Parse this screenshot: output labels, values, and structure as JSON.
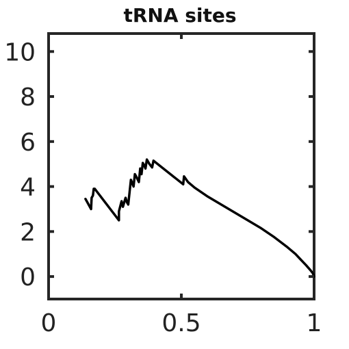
{
  "chart_data": {
    "type": "line",
    "title": "tRNA sites",
    "xlabel": "",
    "ylabel": "",
    "xlim": [
      0,
      1
    ],
    "ylim": [
      -1,
      10.8
    ],
    "xticks": [
      0,
      0.5,
      1
    ],
    "xtick_labels": [
      "0",
      "0.5",
      "1"
    ],
    "yticks": [
      0,
      2,
      4,
      6,
      8,
      10
    ],
    "ytick_labels": [
      "0",
      "2",
      "4",
      "6",
      "8",
      "10"
    ],
    "grid": false,
    "legend": "none",
    "series": [
      {
        "color": "#000000",
        "x": [
          0.139,
          0.16,
          0.162,
          0.167,
          0.17,
          0.174,
          0.265,
          0.265,
          0.275,
          0.28,
          0.29,
          0.295,
          0.3,
          0.31,
          0.32,
          0.325,
          0.33,
          0.34,
          0.345,
          0.35,
          0.355,
          0.36,
          0.365,
          0.37,
          0.38,
          0.39,
          0.395,
          0.4,
          0.507,
          0.51,
          0.525,
          0.55,
          0.6,
          0.65,
          0.7,
          0.75,
          0.8,
          0.85,
          0.9,
          0.93,
          0.95,
          0.97,
          0.985,
          0.995,
          1.0
        ],
        "y": [
          3.45,
          3.0,
          3.5,
          3.6,
          3.9,
          3.9,
          2.5,
          2.9,
          3.35,
          3.1,
          3.5,
          3.3,
          3.2,
          4.3,
          4.0,
          4.55,
          4.45,
          4.2,
          4.8,
          4.55,
          5.05,
          4.95,
          4.8,
          5.2,
          5.0,
          4.85,
          5.15,
          5.1,
          4.1,
          4.45,
          4.2,
          3.95,
          3.55,
          3.2,
          2.85,
          2.5,
          2.15,
          1.75,
          1.3,
          1.0,
          0.75,
          0.5,
          0.3,
          0.15,
          0.0
        ]
      }
    ]
  }
}
